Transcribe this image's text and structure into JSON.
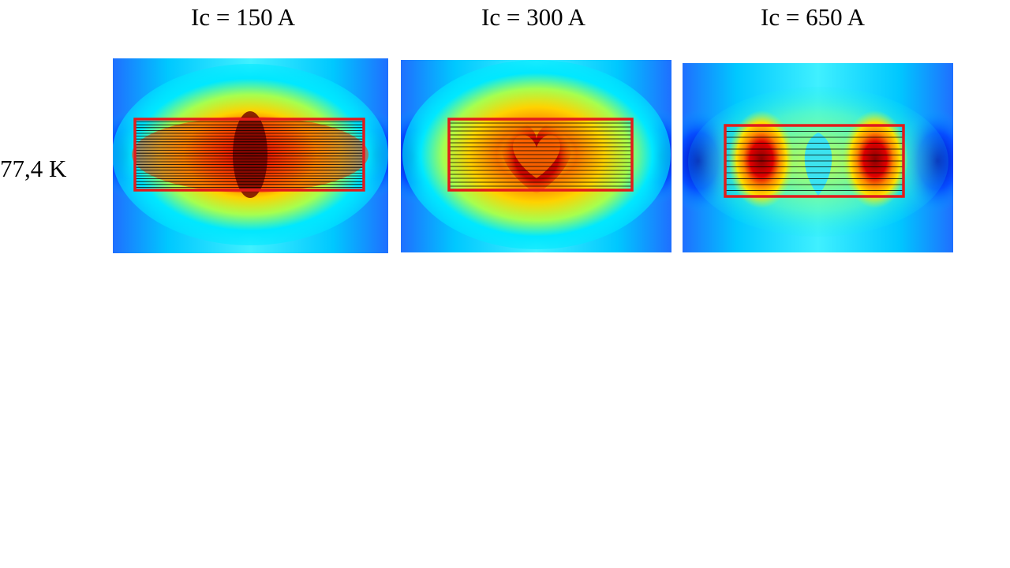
{
  "row_label": "77,4 K",
  "panels": [
    {
      "title": "Ic = 150 A",
      "pattern": "center",
      "lines": 24
    },
    {
      "title": "Ic = 300 A",
      "pattern": "heart",
      "lines": 17
    },
    {
      "title": "Ic = 650 A",
      "pattern": "two-lobes",
      "lines": 11
    }
  ],
  "colors": {
    "coil_outline": "#e21b1b",
    "field_lines": "#000000",
    "low": "#0000c8",
    "mid": "#00e8ff",
    "high": "#8b0000"
  }
}
